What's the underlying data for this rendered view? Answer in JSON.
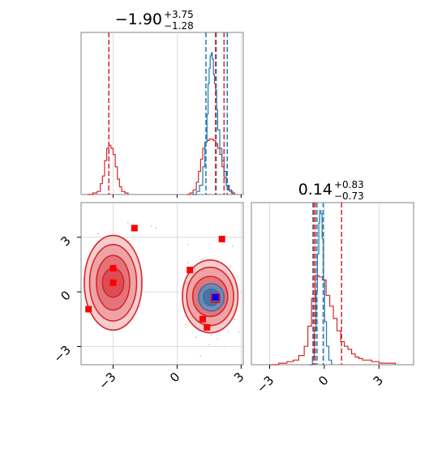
{
  "titles": {
    "x": {
      "main": "−1.90",
      "sup": "+3.75",
      "sub": "−1.28"
    },
    "y": {
      "main": "0.14",
      "sup": "+0.83",
      "sub": "−0.73"
    }
  },
  "colors": {
    "red": "#d62728",
    "blue": "#1f77b4",
    "red_marker": "#ff0000",
    "blue_marker": "#0000ff",
    "grid": "#d3d3d3",
    "axis": "#808080"
  },
  "chart_data": {
    "type": "corner",
    "parameters": [
      "x",
      "y"
    ],
    "ranges": {
      "x": [
        -4.5,
        3.1
      ],
      "y": [
        -4.0,
        4.9
      ]
    },
    "ticks": {
      "x": [
        -3,
        0,
        3
      ],
      "y": [
        -3,
        0,
        3
      ]
    },
    "tick_labels": {
      "x": [
        "−3",
        "0",
        "3"
      ],
      "y": [
        "−3",
        "0",
        "3"
      ]
    },
    "grid": true,
    "marginal_x": {
      "red_hist": [
        [
          -4.2,
          0
        ],
        [
          -3.95,
          0.01
        ],
        [
          -3.75,
          0.02
        ],
        [
          -3.6,
          0.07
        ],
        [
          -3.5,
          0.12
        ],
        [
          -3.4,
          0.22
        ],
        [
          -3.3,
          0.3
        ],
        [
          -3.2,
          0.32
        ],
        [
          -3.1,
          0.3
        ],
        [
          -3.0,
          0.26
        ],
        [
          -2.9,
          0.18
        ],
        [
          -2.8,
          0.1
        ],
        [
          -2.7,
          0.05
        ],
        [
          -2.6,
          0.02
        ],
        [
          -2.45,
          0.01
        ],
        [
          -2.3,
          0
        ],
        [
          0.45,
          0
        ],
        [
          0.6,
          0.01
        ],
        [
          0.75,
          0.03
        ],
        [
          0.9,
          0.08
        ],
        [
          1.0,
          0.15
        ],
        [
          1.1,
          0.23
        ],
        [
          1.2,
          0.3
        ],
        [
          1.3,
          0.34
        ],
        [
          1.4,
          0.35
        ],
        [
          1.5,
          0.36
        ],
        [
          1.6,
          0.36
        ],
        [
          1.7,
          0.35
        ],
        [
          1.8,
          0.33
        ],
        [
          1.9,
          0.3
        ],
        [
          2.0,
          0.26
        ],
        [
          2.1,
          0.18
        ],
        [
          2.2,
          0.11
        ],
        [
          2.3,
          0.06
        ],
        [
          2.4,
          0.03
        ],
        [
          2.55,
          0.01
        ],
        [
          2.7,
          0
        ]
      ],
      "blue_hist": [
        [
          0.7,
          0
        ],
        [
          0.9,
          0.02
        ],
        [
          1.05,
          0.06
        ],
        [
          1.2,
          0.18
        ],
        [
          1.3,
          0.34
        ],
        [
          1.4,
          0.52
        ],
        [
          1.45,
          0.72
        ],
        [
          1.5,
          0.82
        ],
        [
          1.55,
          0.9
        ],
        [
          1.6,
          0.92
        ],
        [
          1.65,
          0.88
        ],
        [
          1.7,
          0.78
        ],
        [
          1.75,
          0.72
        ],
        [
          1.8,
          0.68
        ],
        [
          1.85,
          0.55
        ],
        [
          1.9,
          0.42
        ],
        [
          2.0,
          0.3
        ],
        [
          2.1,
          0.22
        ],
        [
          2.2,
          0.15
        ],
        [
          2.3,
          0.06
        ],
        [
          2.45,
          0.02
        ],
        [
          2.6,
          0
        ]
      ],
      "red_lines": [
        -3.2,
        1.8
      ],
      "red_dashed_center": 2.2,
      "blue_lines": [
        1.35,
        1.83,
        2.35
      ]
    },
    "marginal_y": {
      "red_hist": [
        [
          -2.95,
          0
        ],
        [
          -2.5,
          0.01
        ],
        [
          -2.05,
          0.02
        ],
        [
          -1.7,
          0.03
        ],
        [
          -1.4,
          0.06
        ],
        [
          -1.1,
          0.12
        ],
        [
          -0.9,
          0.25
        ],
        [
          -0.7,
          0.43
        ],
        [
          -0.5,
          0.58
        ],
        [
          -0.3,
          0.57
        ],
        [
          -0.1,
          0.55
        ],
        [
          0.1,
          0.45
        ],
        [
          0.3,
          0.38
        ],
        [
          0.5,
          0.3
        ],
        [
          0.7,
          0.22
        ],
        [
          0.9,
          0.15
        ],
        [
          1.1,
          0.12
        ],
        [
          1.3,
          0.1
        ],
        [
          1.5,
          0.07
        ],
        [
          1.7,
          0.05
        ],
        [
          1.9,
          0.04
        ],
        [
          2.1,
          0.03
        ],
        [
          2.3,
          0.03
        ],
        [
          2.6,
          0.02
        ],
        [
          3.0,
          0.01
        ],
        [
          3.5,
          0.01
        ],
        [
          3.9,
          0
        ]
      ],
      "blue_hist": [
        [
          -0.8,
          0
        ],
        [
          -0.65,
          0.05
        ],
        [
          -0.55,
          0.22
        ],
        [
          -0.45,
          0.48
        ],
        [
          -0.38,
          0.72
        ],
        [
          -0.3,
          0.92
        ],
        [
          -0.25,
          1.0
        ],
        [
          -0.18,
          0.98
        ],
        [
          -0.12,
          0.82
        ],
        [
          -0.05,
          0.55
        ],
        [
          0.02,
          0.28
        ],
        [
          0.12,
          0.12
        ],
        [
          0.25,
          0.03
        ],
        [
          0.4,
          0
        ]
      ],
      "red_lines": [
        -0.58,
        -0.5,
        0.95
      ],
      "blue_lines": [
        -0.62,
        -0.4,
        -0.06
      ]
    },
    "joint": {
      "red_contours": [
        {
          "cx": -3.0,
          "cy": 0.5,
          "rx": [
            1.35,
            1.1,
            0.78,
            0.5
          ],
          "ry": [
            2.6,
            2.1,
            1.5,
            0.8
          ]
        },
        {
          "cx": 1.55,
          "cy": -0.25,
          "rx": [
            1.3,
            1.1,
            0.82,
            0.5
          ],
          "ry": [
            2.0,
            1.6,
            1.1,
            0.55
          ]
        }
      ],
      "blue_contour": {
        "cx": 1.6,
        "cy": -0.3,
        "rx": [
          0.6,
          0.38
        ],
        "ry": [
          0.75,
          0.45
        ]
      },
      "red_markers": [
        [
          -2.0,
          3.5
        ],
        [
          2.1,
          2.9
        ],
        [
          0.6,
          1.2
        ],
        [
          -4.15,
          -0.95
        ],
        [
          1.2,
          -1.5
        ],
        [
          1.4,
          -1.95
        ],
        [
          -3.0,
          1.3
        ],
        [
          -3.0,
          0.5
        ]
      ],
      "blue_markers": [
        [
          1.8,
          -0.3
        ]
      ],
      "red_outline_markers": [
        [
          1.8,
          -0.35
        ]
      ],
      "scatter_points": [
        [
          -2.3,
          3.8
        ],
        [
          -3.7,
          3.2
        ],
        [
          -1.2,
          3.6
        ],
        [
          -1.0,
          3.5
        ],
        [
          0.5,
          2.6
        ],
        [
          2.6,
          2.5
        ],
        [
          0.8,
          0.6
        ],
        [
          0.4,
          -1.8
        ],
        [
          2.8,
          0.8
        ],
        [
          2.7,
          -1.5
        ],
        [
          0.9,
          -2.5
        ],
        [
          1.1,
          -3.5
        ],
        [
          2.2,
          -3.0
        ],
        [
          1.9,
          -2.6
        ],
        [
          1.5,
          -2.9
        ],
        [
          0.7,
          -1.1
        ],
        [
          2.9,
          -2.2
        ],
        [
          -4.3,
          0.9
        ],
        [
          -1.8,
          -0.7
        ],
        [
          -2.1,
          1.9
        ],
        [
          -3.8,
          -0.1
        ],
        [
          0.5,
          1.6
        ],
        [
          2.5,
          1.4
        ],
        [
          1.0,
          -2.0
        ],
        [
          2.4,
          -2.2
        ],
        [
          1.6,
          -2.4
        ],
        [
          0.9,
          0.9
        ],
        [
          2.85,
          0.1
        ],
        [
          -4.0,
          1.7
        ],
        [
          -2.4,
          -1.1
        ],
        [
          0.6,
          -0.6
        ],
        [
          1.2,
          1.8
        ]
      ]
    }
  }
}
